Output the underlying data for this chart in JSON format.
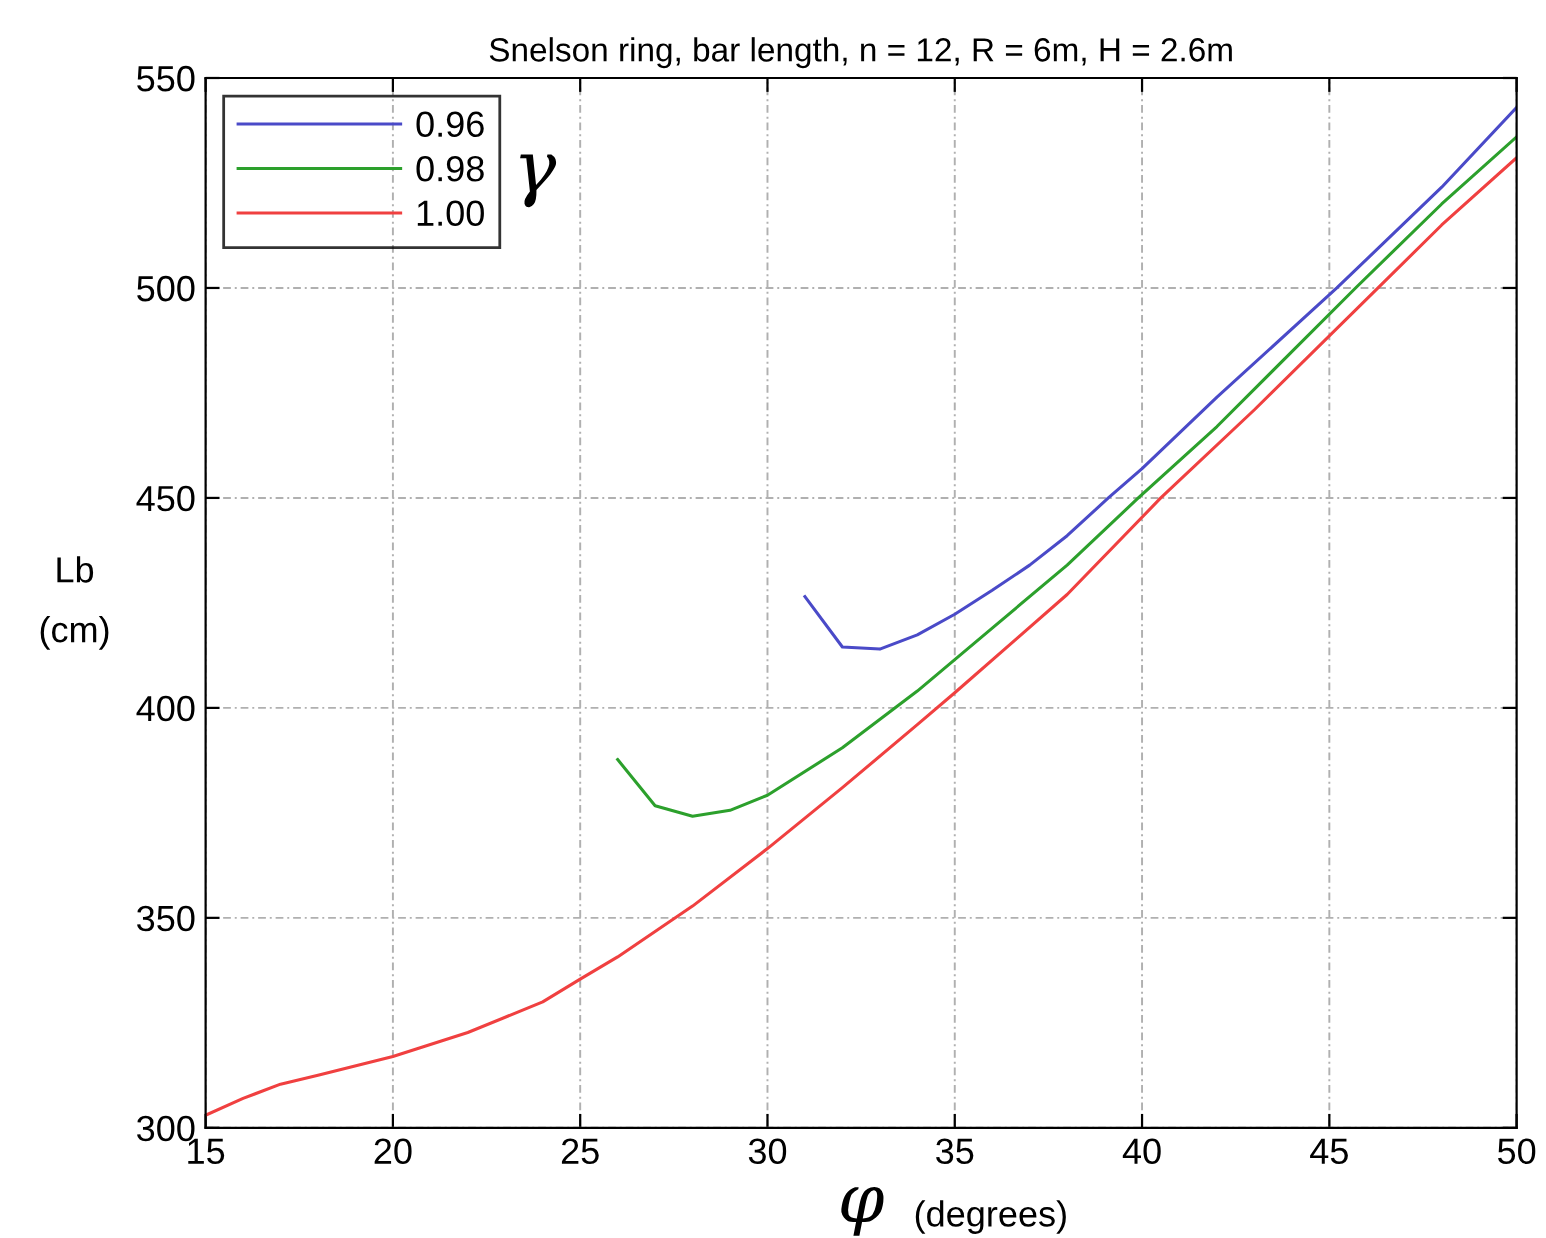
{
  "chart_data": {
    "type": "line",
    "title": "Snelson ring, bar length, n = 12, R = 6m, H = 2.6m",
    "xlabel": "φ",
    "ylabel": "Lb\n(cm)",
    "legend_title": "γ",
    "annotations": [
      "(degrees)"
    ],
    "series": [
      {
        "name": "0.96",
        "color": "#4a4ac8",
        "x": [
          31,
          32,
          33,
          34,
          35,
          36,
          37,
          38,
          39.1,
          40,
          42,
          45.2,
          48,
          50
        ],
        "values": [
          426.5,
          414.5,
          414,
          417.4,
          422.3,
          428,
          434,
          441,
          450,
          457,
          474,
          500,
          524,
          543
        ]
      },
      {
        "name": "0.98",
        "color": "#2ca02c",
        "x": [
          26,
          27,
          28,
          29,
          30,
          32,
          34,
          36,
          38,
          39.9,
          42,
          45.7,
          48,
          50
        ],
        "values": [
          387.7,
          376.7,
          374.2,
          375.6,
          379.2,
          390.5,
          404,
          419,
          434,
          450,
          467,
          500,
          520,
          536
        ]
      },
      {
        "name": "1.00",
        "color": "#f04040",
        "x": [
          15,
          16,
          17,
          18,
          20,
          22,
          24,
          25,
          26,
          28,
          30,
          32,
          34,
          35,
          38,
          40.5,
          43,
          46.3,
          48,
          50
        ],
        "values": [
          303,
          307,
          310.4,
          312.5,
          317,
          322.7,
          330,
          335.4,
          340.7,
          352.8,
          366.5,
          381,
          396,
          403.6,
          427,
          450,
          471,
          500,
          515,
          531
        ]
      }
    ],
    "xlim": [
      15,
      50
    ],
    "ylim": [
      300,
      550
    ],
    "xticks": [
      15,
      20,
      25,
      30,
      35,
      40,
      45,
      50
    ],
    "yticks": [
      300,
      350,
      400,
      450,
      500,
      550
    ],
    "grid": true,
    "legend": "top left",
    "line_style": "solid",
    "marker": "none"
  }
}
